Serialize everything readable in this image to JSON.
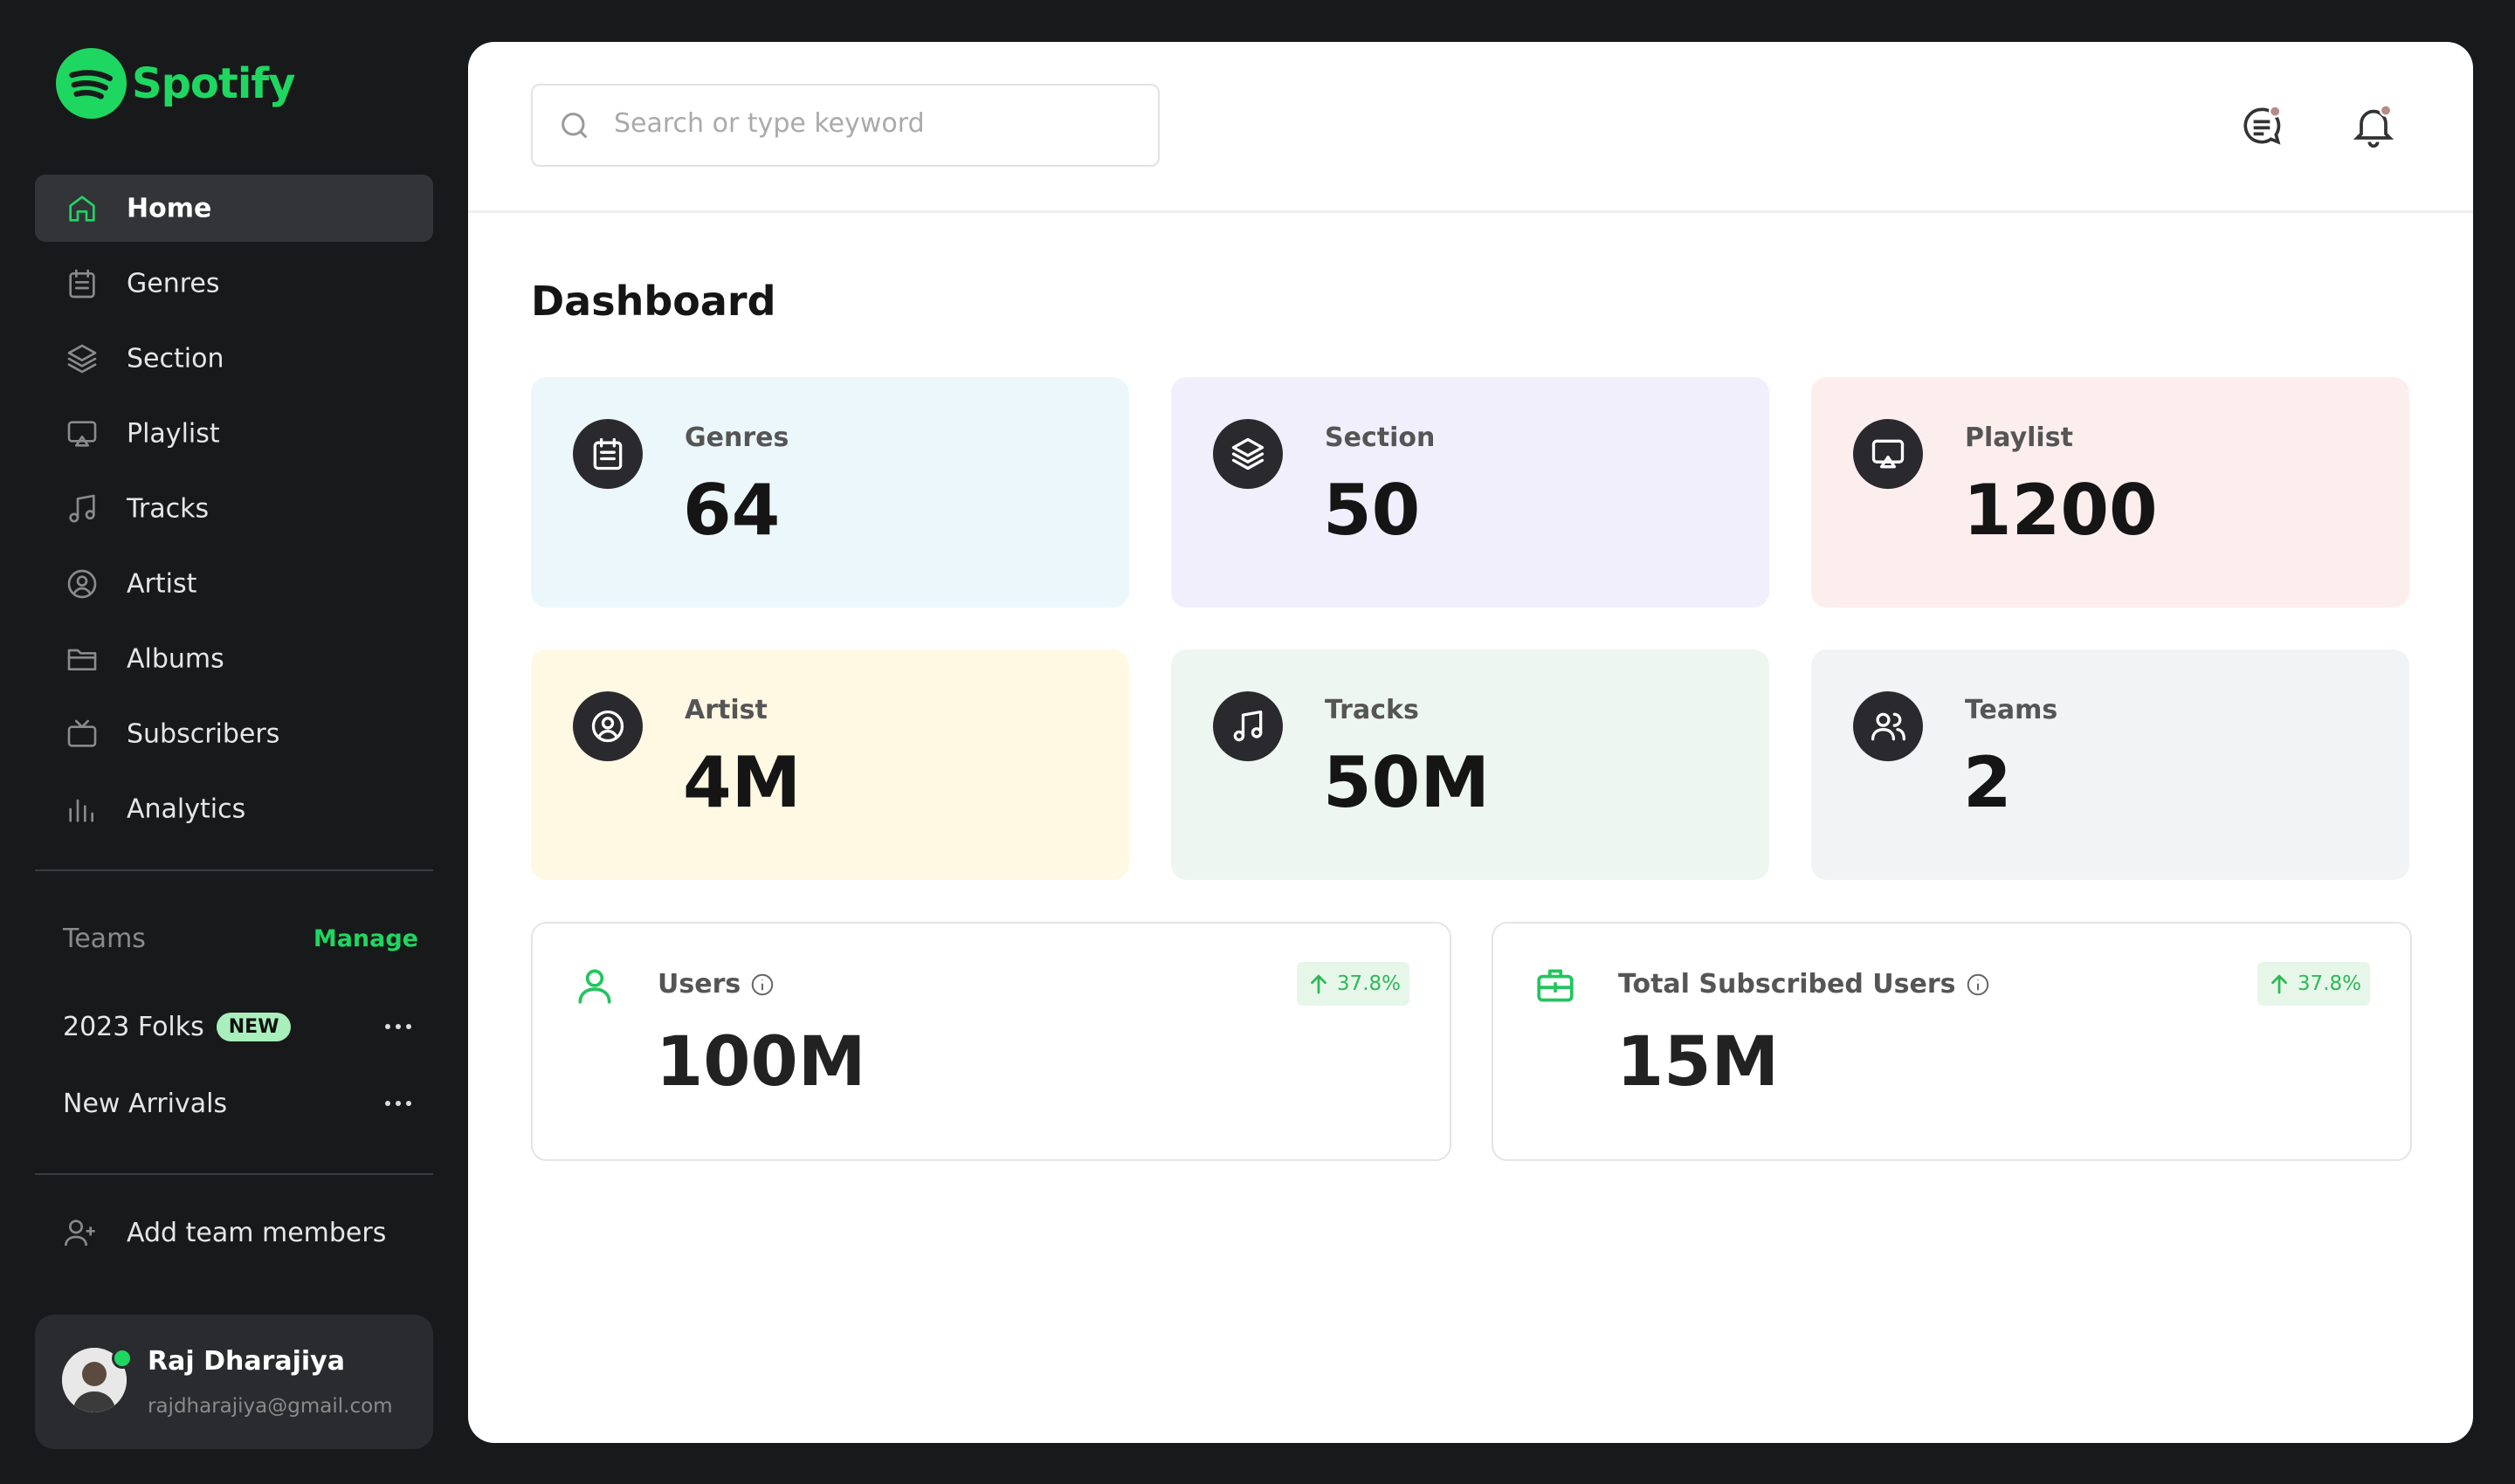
{
  "brand": "Spotify",
  "nav": [
    "Home",
    "Genres",
    "Section",
    "Playlist",
    "Tracks",
    "Artist",
    "Albums",
    "Subscribers",
    "Analytics"
  ],
  "teams": {
    "title": "Teams",
    "action": "Manage",
    "items": [
      {
        "name": "2023 Folks",
        "badge": "NEW"
      },
      {
        "name": "New Arrivals"
      }
    ]
  },
  "add_member": "Add team members",
  "user": {
    "name": "Raj Dharajiya",
    "email": "rajdharajiya@gmail.com"
  },
  "search_placeholder": "Search or type keyword",
  "page_title": "Dashboard",
  "stats": [
    {
      "label": "Genres",
      "value": "64"
    },
    {
      "label": "Section",
      "value": "50"
    },
    {
      "label": "Playlist",
      "value": "1200"
    },
    {
      "label": "Artist",
      "value": "4M"
    },
    {
      "label": "Tracks",
      "value": "50M"
    },
    {
      "label": "Teams",
      "value": "2"
    }
  ],
  "metrics": [
    {
      "label": "Users",
      "value": "100M",
      "change": "37.8%"
    },
    {
      "label": "Total Subscribed Users",
      "value": "15M",
      "change": "37.8%"
    }
  ]
}
